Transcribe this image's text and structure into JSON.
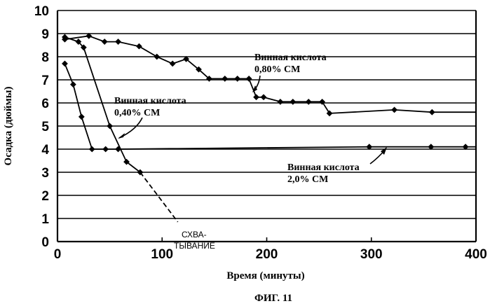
{
  "chart_data": {
    "type": "line",
    "title": "",
    "caption": "ФИГ. 11",
    "xlabel": "Время (минуты)",
    "ylabel": "Осадка (дюймы)",
    "xlim": [
      0,
      400
    ],
    "ylim": [
      0,
      10
    ],
    "x_ticks": [
      0,
      100,
      200,
      300,
      400
    ],
    "y_ticks": [
      0,
      1,
      2,
      3,
      4,
      5,
      6,
      7,
      8,
      9,
      10
    ],
    "grid": "horizontal",
    "series": [
      {
        "name": "Винная кислота 0,40% СМ",
        "label_lines": [
          "Винная кислота",
          "0,40% СМ"
        ],
        "points": [
          [
            7,
            8.85
          ],
          [
            20,
            8.65
          ],
          [
            25,
            8.4
          ],
          [
            50,
            5.0
          ],
          [
            66,
            3.45
          ],
          [
            79,
            3.0
          ]
        ],
        "tail_to": [
          115,
          0.85
        ]
      },
      {
        "name": "Винная кислота 0,80% СМ",
        "label_lines": [
          "Винная кислота",
          "0,80% СМ"
        ],
        "points": [
          [
            7,
            8.75
          ],
          [
            30,
            8.9
          ],
          [
            45,
            8.65
          ],
          [
            58,
            8.65
          ],
          [
            78,
            8.45
          ],
          [
            95,
            8.0
          ],
          [
            110,
            7.7
          ],
          [
            123,
            7.9
          ],
          [
            135,
            7.45
          ],
          [
            145,
            7.05
          ],
          [
            160,
            7.05
          ],
          [
            172,
            7.05
          ],
          [
            183,
            7.05
          ],
          [
            190,
            6.25
          ],
          [
            197,
            6.25
          ],
          [
            213,
            6.05
          ],
          [
            225,
            6.05
          ],
          [
            240,
            6.05
          ],
          [
            253,
            6.05
          ],
          [
            260,
            5.55
          ],
          [
            322,
            5.7
          ],
          [
            358,
            5.6
          ]
        ],
        "tail_to": [
          400,
          5.6
        ]
      },
      {
        "name": "Винная кислота 2,0% СМ",
        "label_lines": [
          "Винная кислота",
          "2,0% СМ"
        ],
        "points": [
          [
            7,
            7.7
          ],
          [
            15,
            6.8
          ],
          [
            23,
            5.4
          ],
          [
            33,
            4.0
          ],
          [
            46,
            4.0
          ],
          [
            58,
            4.0
          ],
          [
            298,
            4.1
          ],
          [
            357,
            4.1
          ],
          [
            390,
            4.1
          ]
        ],
        "tail_to": [
          400,
          4.1
        ]
      }
    ],
    "annotations": {
      "set_label_lines": [
        "СХВА-",
        "ТЫВАНИЕ"
      ]
    }
  }
}
